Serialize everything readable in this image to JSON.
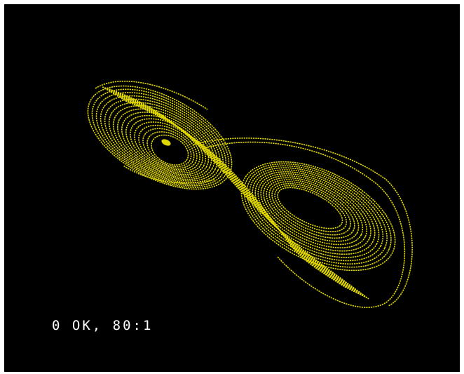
{
  "screen": {
    "background_color": "#000000",
    "ink_color": "#e0d800",
    "status_color": "#ffffff"
  },
  "status": {
    "message": "0 OK, 80:1"
  },
  "graphic": {
    "icon": "lorenz-attractor-icon"
  }
}
